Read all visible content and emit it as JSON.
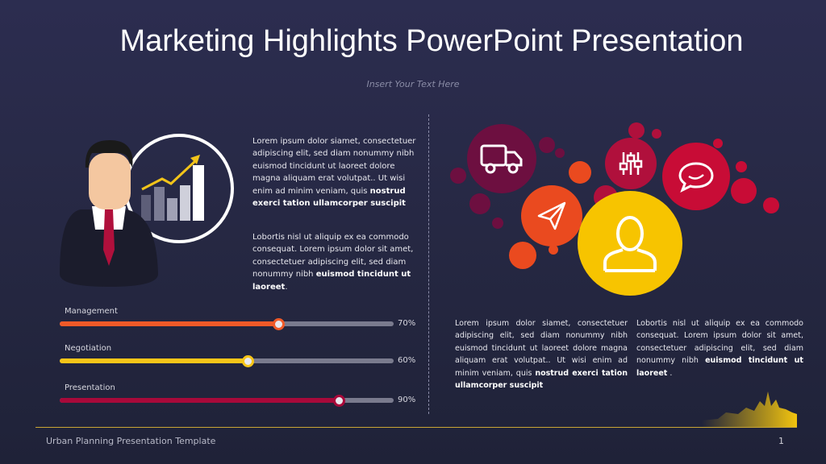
{
  "slide": {
    "title": "Marketing Highlights PowerPoint Presentation",
    "subtitle": "Insert Your Text Here",
    "footer": "Urban Planning Presentation Template",
    "page_number": "1"
  },
  "left_text": {
    "p1": "Lorem ipsum dolor siamet, consectetuer adipiscing elit, sed diam nonummy nibh euismod tincidunt ut laoreet dolore magna aliquam erat volutpat.. Ut wisi enim ad minim veniam, quis ",
    "p1_bold": "nostrud exerci tation ullamcorper suscipit",
    "p2": "Lobortis nisl ut aliquip ex ea commodo consequat. Lorem ipsum dolor sit amet, consectetuer adipiscing elit, sed diam nonummy nibh ",
    "p2_bold": "euismod tincidunt ut laoreet",
    "p2_end": "."
  },
  "skills": [
    {
      "label": "Management",
      "percent": 70,
      "value_text": "70%",
      "color": "#f05a28"
    },
    {
      "label": "Negotiation",
      "percent": 60,
      "value_text": "60%",
      "color": "#f7c518"
    },
    {
      "label": "Presentation",
      "percent": 90,
      "value_text": "90%",
      "color": "#a8093a"
    }
  ],
  "right_text": {
    "col1": "Lorem ipsum dolor siamet, consectetuer adipiscing elit, sed diam nonummy nibh euismod tincidunt ut laoreet dolore magna aliquam erat volutpat.. Ut wisi enim ad minim veniam, quis ",
    "col1_bold": "nostrud exerci tation ullamcorper suscipit",
    "col2": "Lobortis nisl ut aliquip ex ea commodo consequat. Lorem ipsum dolor sit amet, consectetuer adipiscing elit, sed diam nonummy nibh ",
    "col2_bold": "euismod tincidunt ut laoreet",
    "col2_end": " ."
  },
  "icons": [
    {
      "name": "truck-icon",
      "color": "#6d0f40"
    },
    {
      "name": "paper-plane-icon",
      "color": "#ea4a1f"
    },
    {
      "name": "sliders-icon",
      "color": "#b0103c"
    },
    {
      "name": "chat-bubble-icon",
      "color": "#c80c36"
    },
    {
      "name": "user-icon",
      "color": "#f7c400"
    }
  ]
}
